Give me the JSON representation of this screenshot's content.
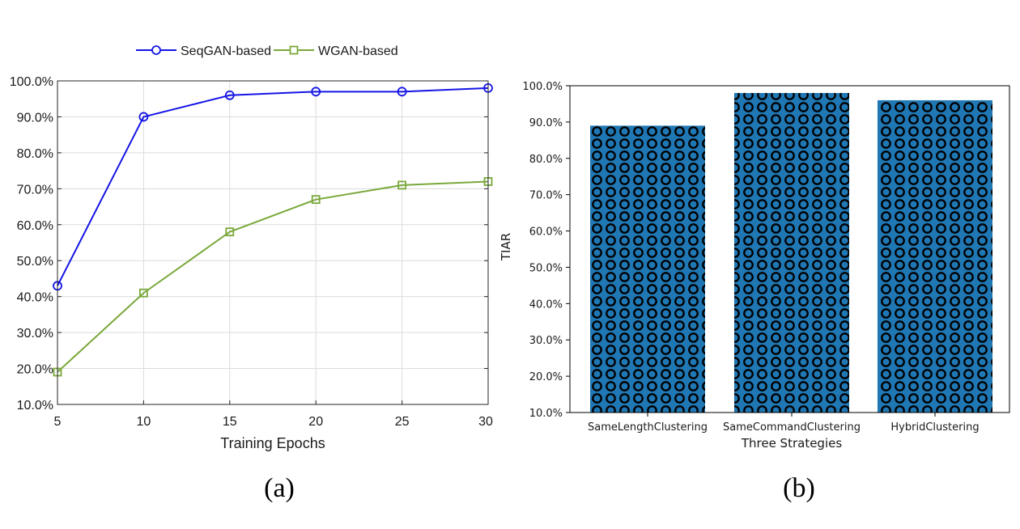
{
  "chart_data": [
    {
      "type": "line",
      "panel_label": "(a)",
      "xlabel": "Training Epochs",
      "ylabel": "",
      "x": [
        5,
        10,
        15,
        20,
        25,
        30
      ],
      "xticks": [
        "5",
        "10",
        "15",
        "20",
        "25",
        "30"
      ],
      "xlim": [
        5,
        30
      ],
      "ylim": [
        10,
        100
      ],
      "yticks": [
        "10.0%",
        "20.0%",
        "30.0%",
        "40.0%",
        "50.0%",
        "60.0%",
        "70.0%",
        "80.0%",
        "90.0%",
        "100.0%"
      ],
      "grid": true,
      "legend_position": "top",
      "series": [
        {
          "name": "SeqGAN-based",
          "values": [
            43,
            90,
            96,
            97,
            97,
            98
          ],
          "color": "#1414e6",
          "marker": "circle"
        },
        {
          "name": "WGAN-based",
          "values": [
            19,
            41,
            58,
            67,
            71,
            72
          ],
          "color": "#7aa83a",
          "marker": "square"
        }
      ]
    },
    {
      "type": "bar",
      "panel_label": "(b)",
      "xlabel": "Three Strategies",
      "ylabel": "TIAR",
      "categories": [
        "SameLengthClustering",
        "SameCommandClustering",
        "HybridClustering"
      ],
      "values": [
        89,
        98,
        96
      ],
      "ylim": [
        10,
        100
      ],
      "yticks": [
        "10.0%",
        "20.0%",
        "30.0%",
        "40.0%",
        "50.0%",
        "60.0%",
        "70.0%",
        "80.0%",
        "90.0%",
        "100.0%"
      ],
      "bar_color": "#1f77b4",
      "hatch": "circles",
      "grid": false
    }
  ]
}
